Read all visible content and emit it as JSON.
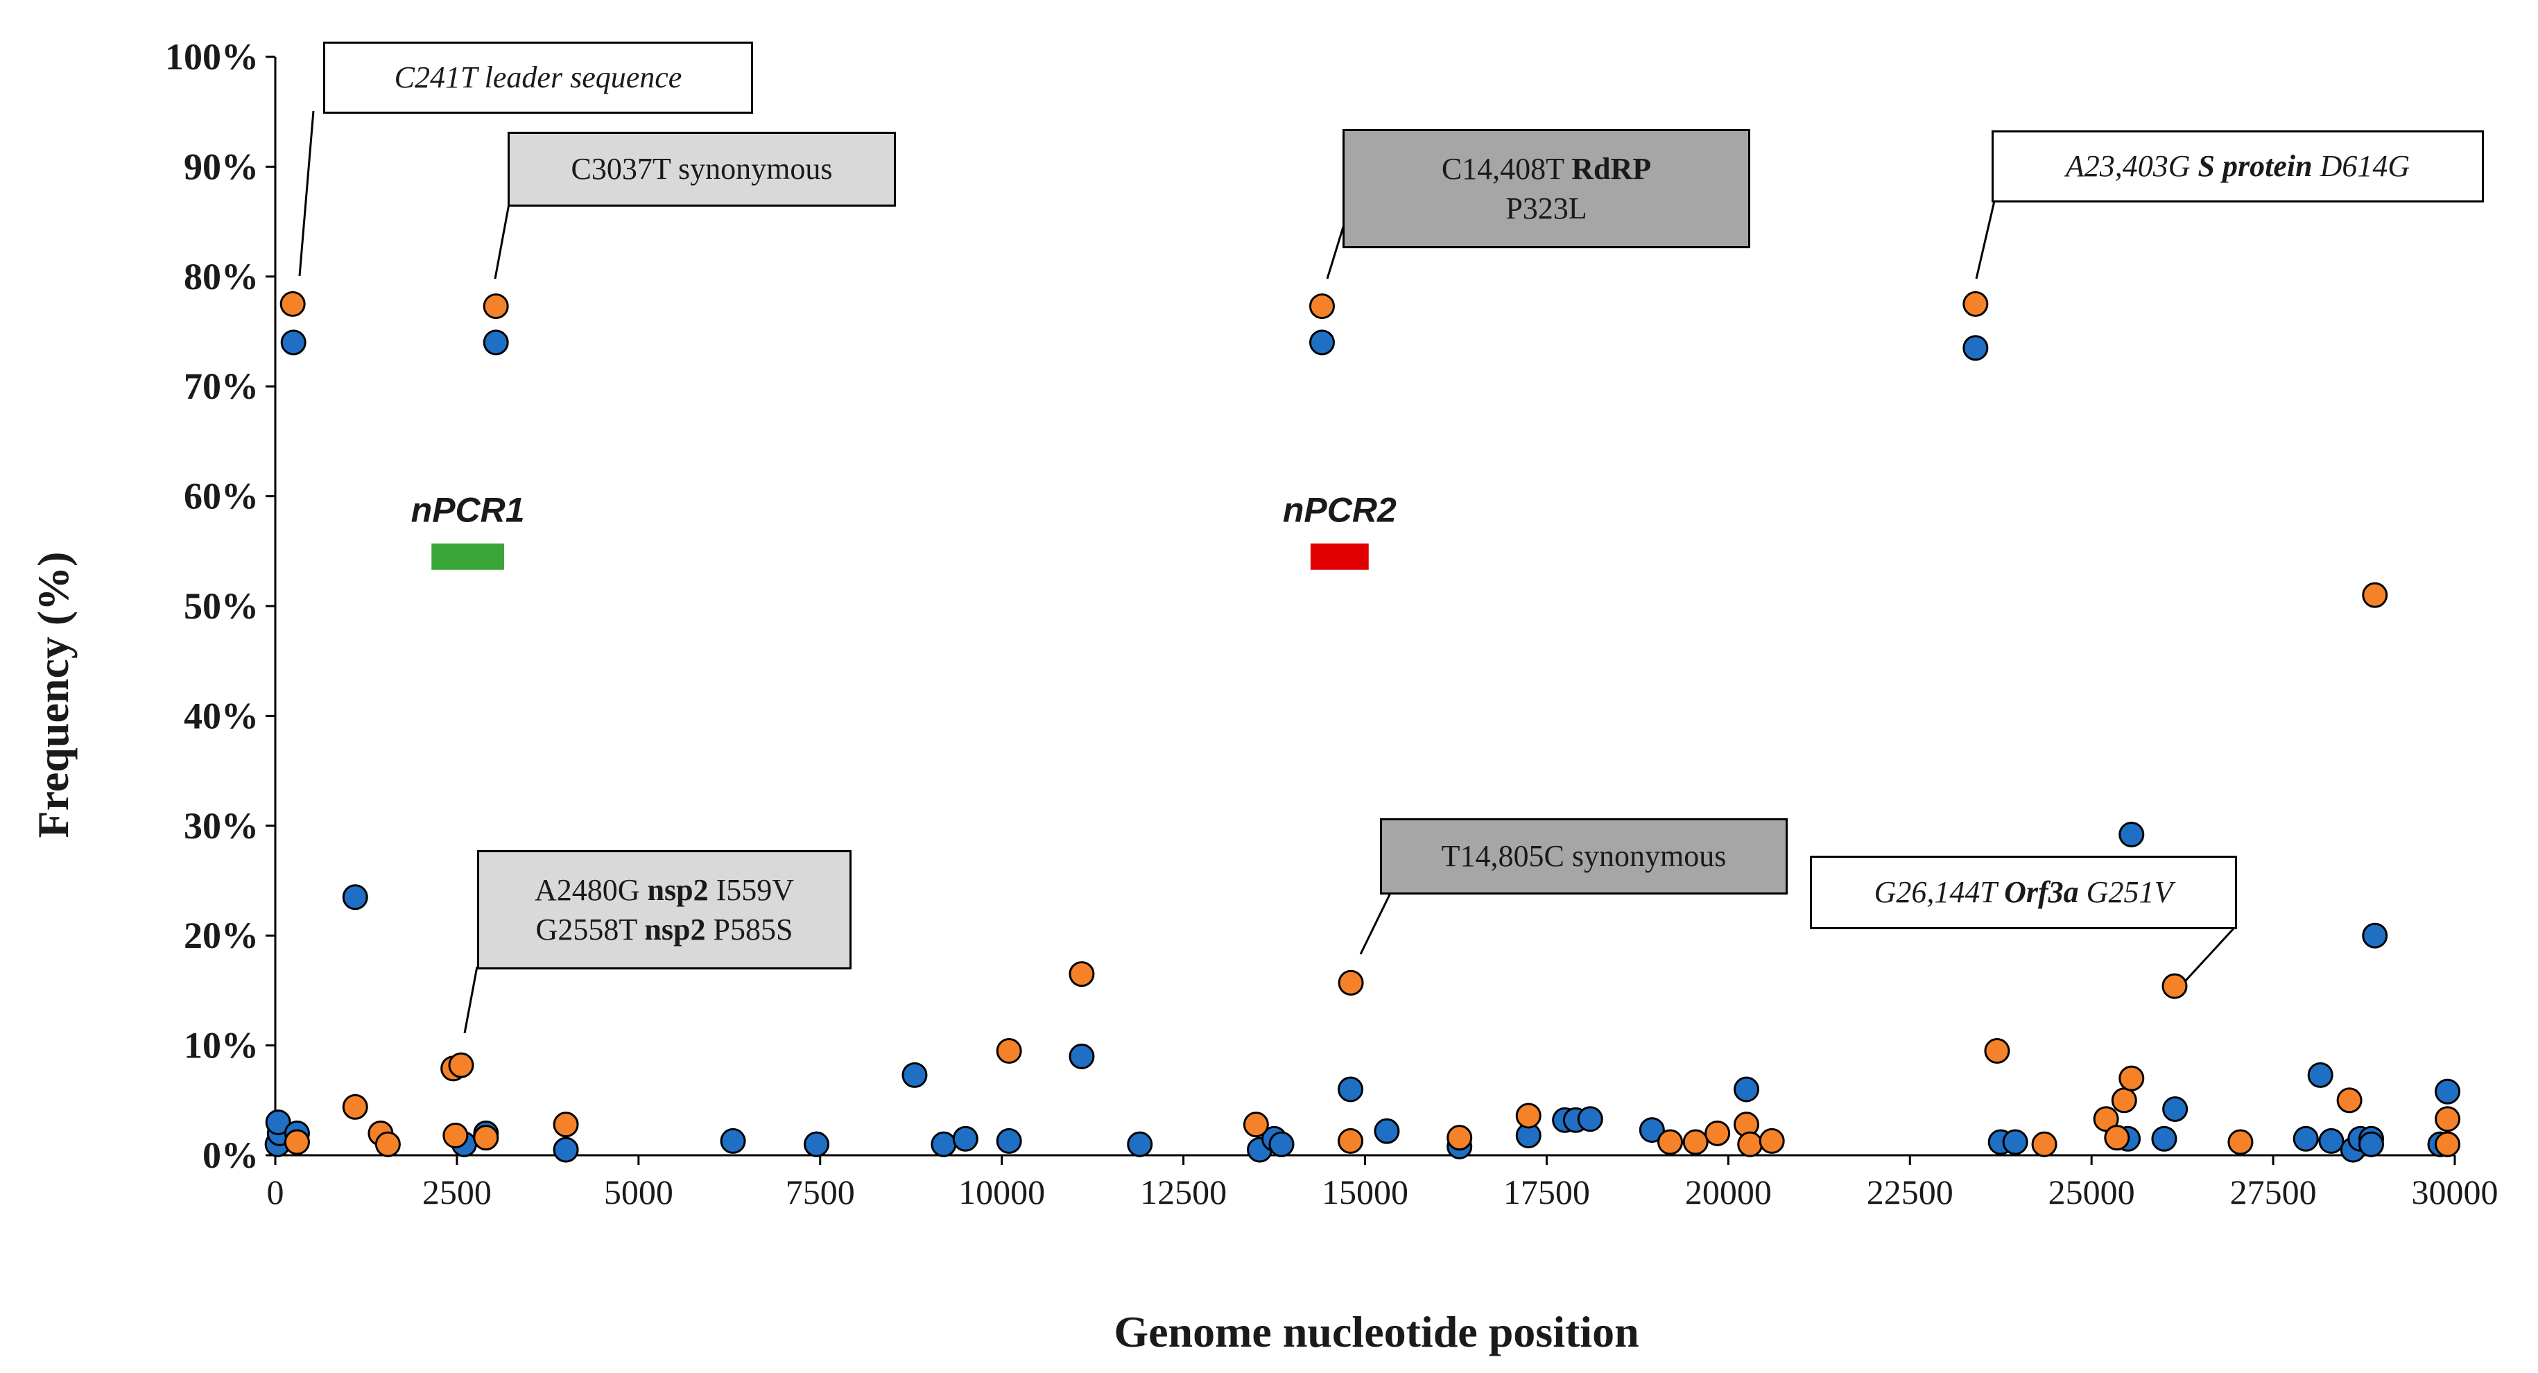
{
  "chart_data": {
    "type": "scatter",
    "title": "",
    "xlabel": "Genome nucleotide position",
    "ylabel": "Frequency (%)",
    "xlim": [
      0,
      30000
    ],
    "ylim": [
      0,
      100
    ],
    "x_ticks": [
      0,
      2500,
      5000,
      7500,
      10000,
      12500,
      15000,
      17500,
      20000,
      22500,
      25000,
      27500,
      30000
    ],
    "y_ticks": [
      0,
      10,
      20,
      30,
      40,
      50,
      60,
      70,
      80,
      90,
      100
    ],
    "y_tick_labels": [
      "0%",
      "10%",
      "20%",
      "30%",
      "40%",
      "50%",
      "60%",
      "70%",
      "80%",
      "90%",
      "100%"
    ],
    "colors": {
      "blue": "#1f6fc4",
      "orange": "#f58229",
      "green": "#3aa63a",
      "red": "#e00000",
      "grey_light": "#d9d9d9",
      "grey_dark": "#a6a6a6"
    },
    "series": [
      {
        "name": "blue",
        "points": [
          [
            30,
            1
          ],
          [
            60,
            2
          ],
          [
            40,
            3
          ],
          [
            300,
            2
          ],
          [
            250,
            74
          ],
          [
            3037,
            74
          ],
          [
            14408,
            74
          ],
          [
            23403,
            73.5
          ],
          [
            1100,
            23.5
          ],
          [
            2600,
            1
          ],
          [
            2900,
            2
          ],
          [
            4000,
            0.5
          ],
          [
            6300,
            1.3
          ],
          [
            7450,
            1
          ],
          [
            8800,
            7.3
          ],
          [
            9200,
            1
          ],
          [
            9500,
            1.5
          ],
          [
            10100,
            1.3
          ],
          [
            11100,
            9
          ],
          [
            11900,
            1
          ],
          [
            13550,
            0.5
          ],
          [
            13750,
            1.5
          ],
          [
            13850,
            1
          ],
          [
            14800,
            6
          ],
          [
            15300,
            2.2
          ],
          [
            16300,
            0.8
          ],
          [
            17250,
            1.8
          ],
          [
            17750,
            3.2
          ],
          [
            17900,
            3.2
          ],
          [
            18100,
            3.3
          ],
          [
            18950,
            2.3
          ],
          [
            20250,
            6
          ],
          [
            23750,
            1.2
          ],
          [
            23950,
            1.2
          ],
          [
            25550,
            29.2
          ],
          [
            25500,
            1.5
          ],
          [
            26000,
            1.5
          ],
          [
            26150,
            4.2
          ],
          [
            27950,
            1.5
          ],
          [
            28150,
            7.3
          ],
          [
            28300,
            1.3
          ],
          [
            28600,
            0.5
          ],
          [
            28700,
            1.5
          ],
          [
            28850,
            1.5
          ],
          [
            28900,
            20
          ],
          [
            29800,
            1
          ],
          [
            29900,
            5.8
          ],
          [
            28850,
            1
          ]
        ]
      },
      {
        "name": "orange",
        "points": [
          [
            240,
            77.5
          ],
          [
            3037,
            77.3
          ],
          [
            14408,
            77.3
          ],
          [
            23403,
            77.5
          ],
          [
            300,
            1.2
          ],
          [
            1100,
            4.4
          ],
          [
            1450,
            2
          ],
          [
            1550,
            1
          ],
          [
            2450,
            7.9
          ],
          [
            2558,
            8.2
          ],
          [
            2480,
            1.8
          ],
          [
            2900,
            1.6
          ],
          [
            4000,
            2.8
          ],
          [
            10100,
            9.5
          ],
          [
            11100,
            16.5
          ],
          [
            13500,
            2.8
          ],
          [
            14805,
            15.7
          ],
          [
            14800,
            1.3
          ],
          [
            16300,
            1.6
          ],
          [
            17250,
            3.6
          ],
          [
            19200,
            1.2
          ],
          [
            19550,
            1.2
          ],
          [
            19850,
            2
          ],
          [
            20250,
            2.8
          ],
          [
            20300,
            1
          ],
          [
            20600,
            1.3
          ],
          [
            23700,
            9.5
          ],
          [
            24350,
            1
          ],
          [
            25200,
            3.3
          ],
          [
            25350,
            1.6
          ],
          [
            25450,
            5
          ],
          [
            25550,
            7
          ],
          [
            26144,
            15.4
          ],
          [
            27050,
            1.2
          ],
          [
            28550,
            5
          ],
          [
            28900,
            51
          ],
          [
            29900,
            3.3
          ],
          [
            29900,
            1
          ]
        ]
      }
    ],
    "regions": [
      {
        "label": "nPCR1",
        "x_start": 2150,
        "x_end": 3150,
        "y": 54.5,
        "color": "#3aa63a"
      },
      {
        "label": "nPCR2",
        "x_start": 14250,
        "x_end": 15050,
        "y": 54.5,
        "color": "#e00000"
      }
    ],
    "annotations": [
      {
        "id": "a1",
        "lines": [
          [
            "C241T leader sequence"
          ]
        ],
        "style": "italic",
        "fill": "#ffffff",
        "target": [
          240,
          77.5
        ]
      },
      {
        "id": "a2",
        "lines": [
          [
            "C3037T synonymous"
          ]
        ],
        "style": "normal",
        "fill": "#d9d9d9",
        "target": [
          3037,
          77.3
        ]
      },
      {
        "id": "a3",
        "lines": [
          [
            "C14,408T ",
            "RdRP"
          ],
          [
            "P323L"
          ]
        ],
        "style": "normal",
        "fill": "#a6a6a6",
        "target": [
          14408,
          77.3
        ]
      },
      {
        "id": "a4",
        "lines": [
          [
            "A23,403G ",
            "S protein",
            " D614G"
          ]
        ],
        "style": "italic",
        "fill": "#ffffff",
        "target": [
          23403,
          77.5
        ]
      },
      {
        "id": "a5",
        "lines": [
          [
            "A2480G ",
            "nsp2",
            " I559V"
          ],
          [
            "G2558T ",
            "nsp2",
            " P585S"
          ]
        ],
        "style": "normal",
        "fill": "#d9d9d9",
        "target": [
          2558,
          8.2
        ]
      },
      {
        "id": "a6",
        "lines": [
          [
            "T14,805C synonymous"
          ]
        ],
        "style": "normal",
        "fill": "#a6a6a6",
        "target": [
          14805,
          15.7
        ]
      },
      {
        "id": "a7",
        "lines": [
          [
            "G26,144T ",
            "Orf3a",
            " G251V"
          ]
        ],
        "style": "italic",
        "fill": "#ffffff",
        "target": [
          26144,
          15.4
        ]
      }
    ]
  }
}
